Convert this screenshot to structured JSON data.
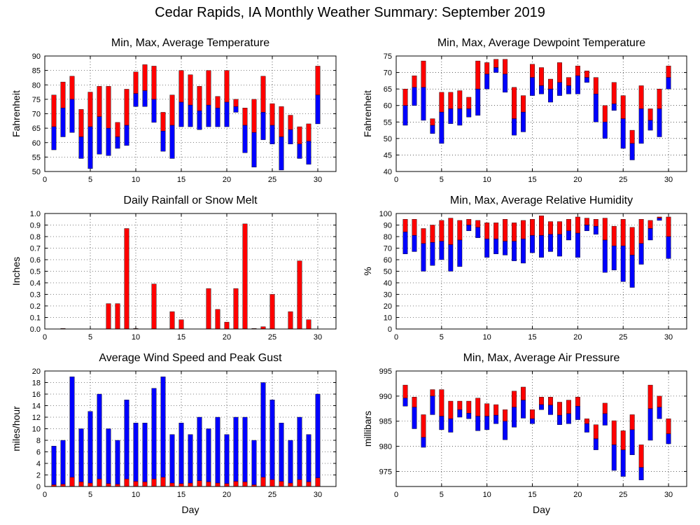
{
  "figure_title": "Cedar Rapids, IA Monthly Weather Summary: September 2019",
  "colors": {
    "red": "#ff0000",
    "blue": "#0000ff"
  },
  "chart_data": [
    {
      "id": "temperature",
      "type": "bar",
      "style": "range-split",
      "title": "Min, Max, Average Temperature",
      "ylabel": "Fahrenheit",
      "xlabel": "",
      "xlim": [
        0,
        32
      ],
      "ylim": [
        50,
        90
      ],
      "yticks": [
        50,
        55,
        60,
        65,
        70,
        75,
        80,
        85,
        90
      ],
      "xticks": [
        0,
        5,
        10,
        15,
        20,
        25,
        30
      ],
      "grid": true,
      "x": [
        1,
        2,
        3,
        4,
        5,
        6,
        7,
        8,
        9,
        10,
        11,
        12,
        13,
        14,
        15,
        16,
        17,
        18,
        19,
        20,
        21,
        22,
        23,
        24,
        25,
        26,
        27,
        28,
        29,
        30
      ],
      "min": [
        57.5,
        62,
        63.5,
        54.5,
        51,
        56,
        55.5,
        58,
        59,
        72.5,
        72.5,
        67,
        57,
        54.5,
        65.5,
        65.5,
        64.5,
        65.5,
        65.5,
        65.5,
        70.5,
        56.5,
        51.5,
        61,
        59.5,
        50.5,
        59.5,
        54.5,
        52.5,
        66.5
      ],
      "avg": [
        65.5,
        72,
        75,
        62,
        65.5,
        69,
        65,
        62,
        66,
        77,
        78,
        75,
        64,
        66,
        74,
        73,
        71,
        73,
        72,
        74,
        72.5,
        66,
        63.5,
        70.5,
        66,
        62,
        64.5,
        59.5,
        60.5,
        76.5
      ],
      "max": [
        76.5,
        81,
        83,
        71.5,
        77.5,
        79.5,
        79.5,
        67,
        78.5,
        84.5,
        87,
        86.5,
        70.5,
        76.5,
        85,
        83.5,
        79.5,
        85,
        76,
        85,
        75,
        72,
        75,
        83,
        73.5,
        72.5,
        69.5,
        65.5,
        66.5,
        86.5
      ]
    },
    {
      "id": "dewpoint",
      "type": "bar",
      "style": "range-split",
      "title": "Min, Max, Average Dewpoint Temperature",
      "ylabel": "Fahrenheit",
      "xlabel": "",
      "xlim": [
        0,
        32
      ],
      "ylim": [
        40,
        75
      ],
      "yticks": [
        40,
        45,
        50,
        55,
        60,
        65,
        70,
        75
      ],
      "xticks": [
        0,
        5,
        10,
        15,
        20,
        25,
        30
      ],
      "grid": true,
      "x": [
        1,
        2,
        3,
        4,
        5,
        6,
        7,
        8,
        9,
        10,
        11,
        12,
        13,
        14,
        15,
        16,
        17,
        18,
        19,
        20,
        21,
        22,
        23,
        24,
        25,
        26,
        27,
        28,
        29,
        30
      ],
      "min": [
        54,
        60,
        55.5,
        51.5,
        48.5,
        54.5,
        54,
        56.5,
        57,
        65,
        70,
        64,
        51,
        52,
        63,
        63.5,
        61,
        63,
        63.5,
        63.5,
        67,
        55,
        50,
        58.5,
        47,
        43.5,
        48.5,
        52.5,
        50.5,
        65
      ],
      "avg": [
        60,
        65.5,
        65.5,
        54,
        58,
        59,
        59,
        59,
        65,
        69.5,
        71.5,
        69.5,
        56,
        58,
        68.5,
        66,
        65,
        67,
        66,
        69,
        68.5,
        63.5,
        55,
        60.5,
        56,
        48.5,
        59,
        55.5,
        59,
        68.5
      ],
      "max": [
        65,
        69,
        73.5,
        56,
        64,
        64,
        64.5,
        62.5,
        73.5,
        73,
        74,
        74,
        65.5,
        63,
        72.5,
        71.5,
        68,
        73,
        68.5,
        72,
        70.5,
        68.5,
        60,
        67,
        63,
        52.5,
        66,
        59,
        65,
        72
      ]
    },
    {
      "id": "rainfall",
      "type": "bar",
      "style": "single",
      "title": "Daily Rainfall or Snow Melt",
      "ylabel": "Inches",
      "xlabel": "",
      "xlim": [
        0,
        32
      ],
      "ylim": [
        0,
        1.0
      ],
      "yticks": [
        0.0,
        0.1,
        0.2,
        0.3,
        0.4,
        0.5,
        0.6,
        0.7,
        0.8,
        0.9,
        1.0
      ],
      "ytick_labels": [
        "0.0",
        "0.1",
        "0.2",
        "0.3",
        "0.4",
        "0.5",
        "0.6",
        "0.7",
        "0.8",
        "0.9",
        "1.0"
      ],
      "xticks": [
        0,
        5,
        10,
        15,
        20,
        25,
        30
      ],
      "grid": true,
      "x": [
        1,
        2,
        3,
        4,
        5,
        6,
        7,
        8,
        9,
        10,
        11,
        12,
        13,
        14,
        15,
        16,
        17,
        18,
        19,
        20,
        21,
        22,
        23,
        24,
        25,
        26,
        27,
        28,
        29,
        30
      ],
      "values": [
        0,
        0.005,
        0,
        0,
        0,
        0,
        0.22,
        0.22,
        0.87,
        0.005,
        0,
        0.39,
        0,
        0.15,
        0.08,
        0,
        0,
        0.35,
        0.17,
        0.06,
        0.35,
        0.91,
        0.005,
        0.02,
        0.3,
        0,
        0.15,
        0.59,
        0.08,
        0
      ]
    },
    {
      "id": "humidity",
      "type": "bar",
      "style": "range-split",
      "title": "Min, Max, Average Relative Humidity",
      "ylabel": "%",
      "xlabel": "",
      "xlim": [
        0,
        32
      ],
      "ylim": [
        0,
        100
      ],
      "yticks": [
        0,
        10,
        20,
        30,
        40,
        50,
        60,
        70,
        80,
        90,
        100
      ],
      "xticks": [
        0,
        5,
        10,
        15,
        20,
        25,
        30
      ],
      "grid": true,
      "x": [
        1,
        2,
        3,
        4,
        5,
        6,
        7,
        8,
        9,
        10,
        11,
        12,
        13,
        14,
        15,
        16,
        17,
        18,
        19,
        20,
        21,
        22,
        23,
        24,
        25,
        26,
        27,
        28,
        29,
        30
      ],
      "min": [
        65,
        67,
        50,
        55,
        60,
        50,
        54,
        85,
        79,
        62,
        65,
        64,
        59,
        57,
        66,
        62,
        67,
        63,
        77,
        62,
        85,
        82,
        49,
        51,
        41,
        36,
        56,
        77,
        94,
        61
      ],
      "avg": [
        84,
        81,
        74,
        75,
        76,
        73,
        77,
        90,
        88,
        78,
        78,
        76,
        76,
        78,
        81,
        81,
        82,
        82,
        85,
        83,
        90,
        89,
        77,
        72,
        72,
        64,
        74,
        87,
        96,
        80
      ],
      "max": [
        95,
        95,
        87,
        90,
        94,
        96,
        94,
        95,
        94,
        92,
        92,
        95,
        92,
        94,
        95,
        98,
        93,
        93,
        95,
        97,
        96,
        95,
        96,
        89,
        95,
        88,
        95,
        94,
        97,
        97
      ]
    },
    {
      "id": "wind",
      "type": "bar",
      "style": "overlay",
      "title": "Average Wind Speed and Peak Gust",
      "ylabel": "miles/hour",
      "xlabel": "Day",
      "xlim": [
        0,
        32
      ],
      "ylim": [
        0,
        20
      ],
      "yticks": [
        0,
        2,
        4,
        6,
        8,
        10,
        12,
        14,
        16,
        18,
        20
      ],
      "xticks": [
        0,
        5,
        10,
        15,
        20,
        25,
        30
      ],
      "grid": true,
      "x": [
        1,
        2,
        3,
        4,
        5,
        6,
        7,
        8,
        9,
        10,
        11,
        12,
        13,
        14,
        15,
        16,
        17,
        18,
        19,
        20,
        21,
        22,
        23,
        24,
        25,
        26,
        27,
        28,
        29,
        30
      ],
      "series": [
        {
          "name": "",
          "role": "peak-gust",
          "color": "blue",
          "values": [
            7,
            8,
            19,
            10,
            13,
            16,
            10,
            8,
            15,
            11,
            11,
            17,
            19,
            9,
            11,
            9,
            12,
            10,
            12,
            9,
            12,
            12,
            8,
            18,
            15,
            11,
            8,
            12,
            9,
            16
          ]
        },
        {
          "name": "",
          "role": "average",
          "color": "red",
          "values": [
            0.3,
            0.4,
            1.6,
            0.8,
            0.6,
            1.3,
            0.5,
            0.4,
            1.3,
            0.9,
            0.8,
            1.3,
            1.6,
            0.6,
            0.5,
            0.6,
            1.0,
            0.8,
            0.6,
            0.5,
            0.9,
            0.8,
            0.3,
            1.6,
            1.2,
            0.9,
            0.6,
            1.2,
            0.8,
            1.5
          ]
        }
      ]
    },
    {
      "id": "pressure",
      "type": "bar",
      "style": "range-split",
      "title": "Min, Max, Average Air Pressure",
      "ylabel": "millibars",
      "xlabel": "Day",
      "xlim": [
        0,
        32
      ],
      "ylim": [
        972,
        995
      ],
      "yticks": [
        975,
        980,
        985,
        990,
        995
      ],
      "xticks": [
        0,
        5,
        10,
        15,
        20,
        25,
        30
      ],
      "grid": true,
      "x": [
        1,
        2,
        3,
        4,
        5,
        6,
        7,
        8,
        9,
        10,
        11,
        12,
        13,
        14,
        15,
        16,
        17,
        18,
        19,
        20,
        21,
        22,
        23,
        24,
        25,
        26,
        27,
        28,
        29,
        30
      ],
      "min": [
        988,
        983.5,
        979.8,
        986.3,
        983.3,
        982.8,
        985.8,
        985.5,
        983.1,
        983.3,
        984.5,
        981.3,
        983.8,
        985.6,
        984.5,
        987.3,
        986.3,
        984.3,
        984.5,
        985.3,
        982.8,
        979.3,
        984.2,
        975.2,
        974,
        978.3,
        973.3,
        981.2,
        985.5,
        980.5
      ],
      "avg": [
        989.6,
        987.8,
        981.8,
        990,
        986,
        985.5,
        987.3,
        986.6,
        986,
        986,
        986.2,
        985,
        987.8,
        989.2,
        985.5,
        988.3,
        988.2,
        986.2,
        986.5,
        988,
        984.5,
        981.5,
        986.5,
        980.3,
        979.3,
        983.3,
        975.8,
        987.5,
        987.8,
        982.5
      ],
      "max": [
        992.2,
        989.8,
        986.3,
        991.3,
        991.3,
        989,
        989,
        989,
        989.6,
        988.5,
        988.3,
        987.3,
        991,
        991.8,
        987.3,
        989.8,
        989.8,
        988.8,
        989.2,
        989.8,
        985.5,
        984.3,
        988.6,
        985.1,
        983.1,
        986.3,
        980.3,
        992.2,
        990,
        985.5
      ]
    }
  ]
}
